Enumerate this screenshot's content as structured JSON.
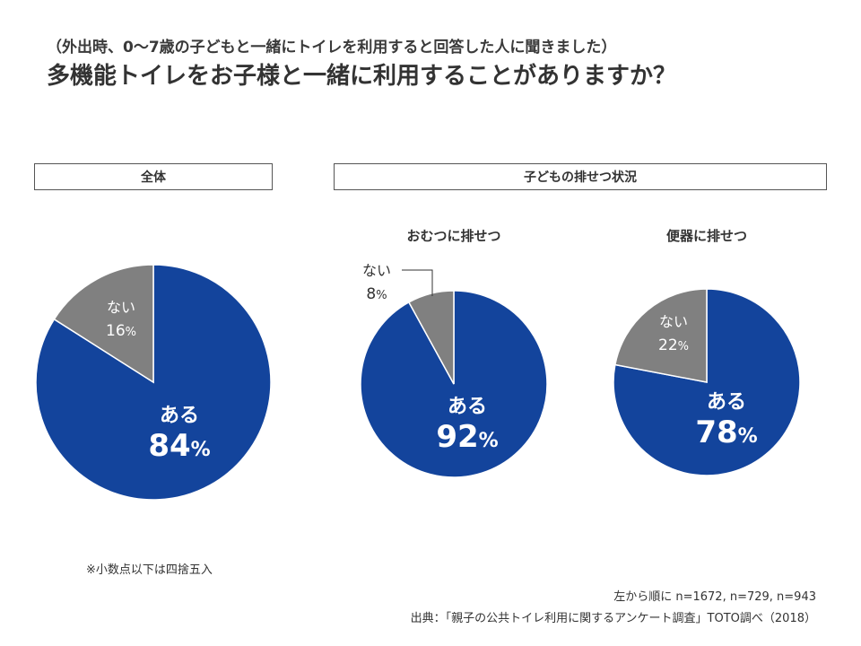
{
  "header": {
    "subtitle": "（外出時、0〜7歳の子どもと一緒にトイレを利用すると回答した人に聞きました）",
    "title": "多機能トイレをお子様と一緒に利用することがありますか？"
  },
  "sections": {
    "overall_label": "全体",
    "by_status_label": "子どもの排せつ状況"
  },
  "chart_data": [
    {
      "type": "pie",
      "title": "全体",
      "categories": [
        "ある",
        "ない"
      ],
      "values": [
        84,
        16
      ],
      "unit": "%",
      "colors": [
        "#13449c",
        "#808080"
      ]
    },
    {
      "type": "pie",
      "title": "おむつに排せつ",
      "categories": [
        "ある",
        "ない"
      ],
      "values": [
        92,
        8
      ],
      "unit": "%",
      "colors": [
        "#13449c",
        "#808080"
      ]
    },
    {
      "type": "pie",
      "title": "便器に排せつ",
      "categories": [
        "ある",
        "ない"
      ],
      "values": [
        78,
        22
      ],
      "unit": "%",
      "colors": [
        "#13449c",
        "#808080"
      ]
    }
  ],
  "footer": {
    "note": "※小数点以下は四捨五入",
    "sample_sizes": "左から順に n=1672, n=729, n=943",
    "source": "出典：「親子の公共トイレ利用に関するアンケート調査」TOTO調べ（2018）"
  }
}
